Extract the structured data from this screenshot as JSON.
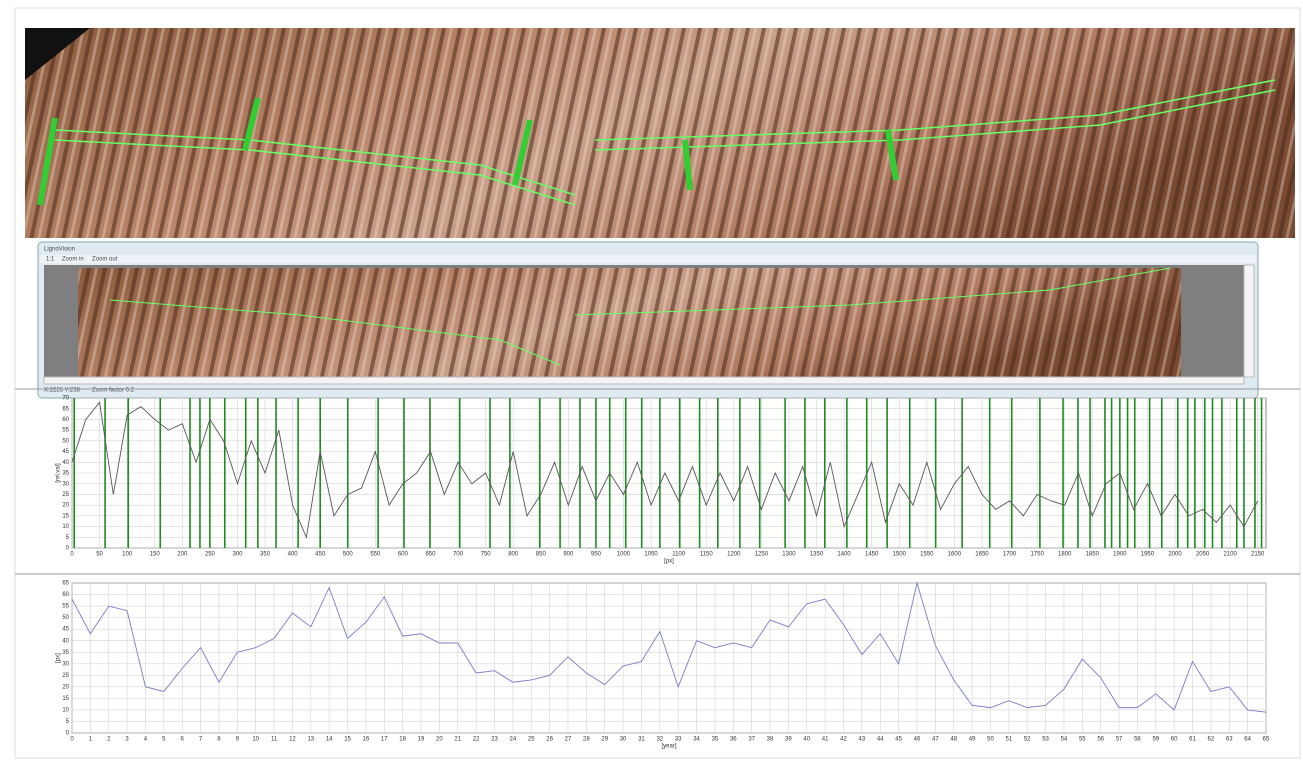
{
  "window": {
    "title": "LignoVision",
    "menu": [
      "1:1",
      "Zoom in",
      "Zoom out"
    ],
    "status": [
      "X:2226  Y:238",
      "Zoom factor 0.2"
    ]
  },
  "chart_data": [
    {
      "type": "line",
      "xlabel": "[px]",
      "ylabel": "[rel.val]",
      "color": "#555555",
      "grid": true,
      "x": [
        0,
        25,
        50,
        75,
        100,
        125,
        150,
        175,
        200,
        225,
        250,
        275,
        300,
        325,
        350,
        375,
        400,
        425,
        450,
        475,
        500,
        525,
        550,
        575,
        600,
        625,
        650,
        675,
        700,
        725,
        750,
        775,
        800,
        825,
        850,
        875,
        900,
        925,
        950,
        975,
        1000,
        1025,
        1050,
        1075,
        1100,
        1125,
        1150,
        1175,
        1200,
        1225,
        1250,
        1275,
        1300,
        1325,
        1350,
        1375,
        1400,
        1425,
        1450,
        1475,
        1500,
        1525,
        1550,
        1575,
        1600,
        1625,
        1650,
        1675,
        1700,
        1725,
        1750,
        1775,
        1800,
        1825,
        1850,
        1875,
        1900,
        1925,
        1950,
        1975,
        2000,
        2025,
        2050,
        2075,
        2100,
        2125,
        2150
      ],
      "values": [
        40,
        60,
        68,
        25,
        62,
        66,
        60,
        55,
        58,
        40,
        60,
        50,
        30,
        50,
        35,
        55,
        20,
        5,
        45,
        15,
        25,
        28,
        45,
        20,
        30,
        35,
        45,
        25,
        40,
        30,
        35,
        20,
        45,
        15,
        25,
        40,
        20,
        38,
        22,
        35,
        25,
        40,
        20,
        35,
        22,
        38,
        20,
        35,
        22,
        38,
        18,
        35,
        22,
        38,
        15,
        40,
        10,
        25,
        40,
        12,
        30,
        20,
        40,
        18,
        30,
        38,
        25,
        18,
        22,
        15,
        25,
        22,
        20,
        35,
        15,
        30,
        35,
        18,
        30,
        15,
        25,
        15,
        18,
        12,
        20,
        10,
        22
      ],
      "ring_borders": {
        "color": "#1f8a1f",
        "x": [
          4,
          60,
          102,
          160,
          214,
          232,
          250,
          277,
          315,
          337,
          370,
          410,
          450,
          500,
          555,
          602,
          649,
          703,
          758,
          794,
          848,
          885,
          921,
          950,
          975,
          1004,
          1033,
          1066,
          1102,
          1138,
          1171,
          1211,
          1247,
          1293,
          1329,
          1365,
          1405,
          1441,
          1478,
          1519,
          1566,
          1614,
          1664,
          1704,
          1755,
          1797,
          1824,
          1846,
          1873,
          1885,
          1900,
          1914,
          1927,
          1954,
          1976,
          2005,
          2023,
          2036,
          2054,
          2068,
          2085,
          2112,
          2125,
          2145,
          2157
        ]
      },
      "xlim": [
        0,
        2165
      ],
      "ylim": [
        0,
        70
      ],
      "xticks": [
        0,
        50,
        100,
        150,
        200,
        250,
        300,
        350,
        400,
        450,
        500,
        550,
        600,
        650,
        700,
        750,
        800,
        850,
        900,
        950,
        1000,
        1050,
        1100,
        1150,
        1200,
        1250,
        1300,
        1350,
        1400,
        1450,
        1500,
        1550,
        1600,
        1650,
        1700,
        1750,
        1800,
        1850,
        1900,
        1950,
        2000,
        2050,
        2100,
        2150
      ],
      "yticks": [
        0,
        5,
        10,
        15,
        20,
        25,
        30,
        35,
        40,
        45,
        50,
        55,
        60,
        65,
        70
      ]
    },
    {
      "type": "line",
      "xlabel": "[year]",
      "ylabel": "[px]",
      "color": "#7b7bc8",
      "grid": true,
      "x": [
        0,
        1,
        2,
        3,
        4,
        5,
        6,
        7,
        8,
        9,
        10,
        11,
        12,
        13,
        14,
        15,
        16,
        17,
        18,
        19,
        20,
        21,
        22,
        23,
        24,
        25,
        26,
        27,
        28,
        29,
        30,
        31,
        32,
        33,
        34,
        35,
        36,
        37,
        38,
        39,
        40,
        41,
        42,
        43,
        44,
        45,
        46,
        47,
        48,
        49,
        50,
        51,
        52,
        53,
        54,
        55,
        56,
        57,
        58,
        59,
        60,
        61,
        62,
        63,
        64,
        65
      ],
      "values": [
        58,
        43,
        55,
        53,
        20,
        18,
        28,
        37,
        22,
        35,
        37,
        41,
        52,
        46,
        63,
        41,
        48,
        59,
        42,
        43,
        39,
        39,
        26,
        27,
        22,
        23,
        25,
        33,
        26,
        21,
        29,
        31,
        44,
        20,
        40,
        37,
        39,
        37,
        49,
        46,
        56,
        58,
        47,
        34,
        43,
        30,
        65,
        38,
        23,
        12,
        11,
        14,
        11,
        12,
        19,
        32,
        24,
        11,
        11,
        17,
        10,
        31,
        18,
        20,
        10,
        9
      ],
      "xlim": [
        0,
        65
      ],
      "ylim": [
        0,
        65
      ],
      "xticks": [
        0,
        1,
        2,
        3,
        4,
        5,
        6,
        7,
        8,
        9,
        10,
        11,
        12,
        13,
        14,
        15,
        16,
        17,
        18,
        19,
        20,
        21,
        22,
        23,
        24,
        25,
        26,
        27,
        28,
        29,
        30,
        31,
        32,
        33,
        34,
        35,
        36,
        37,
        38,
        39,
        40,
        41,
        42,
        43,
        44,
        45,
        46,
        47,
        48,
        49,
        50,
        51,
        52,
        53,
        54,
        55,
        56,
        57,
        58,
        59,
        60,
        61,
        62,
        63,
        64,
        65
      ],
      "yticks": [
        0,
        5,
        10,
        15,
        20,
        25,
        30,
        35,
        40,
        45,
        50,
        55,
        60,
        65
      ]
    }
  ]
}
